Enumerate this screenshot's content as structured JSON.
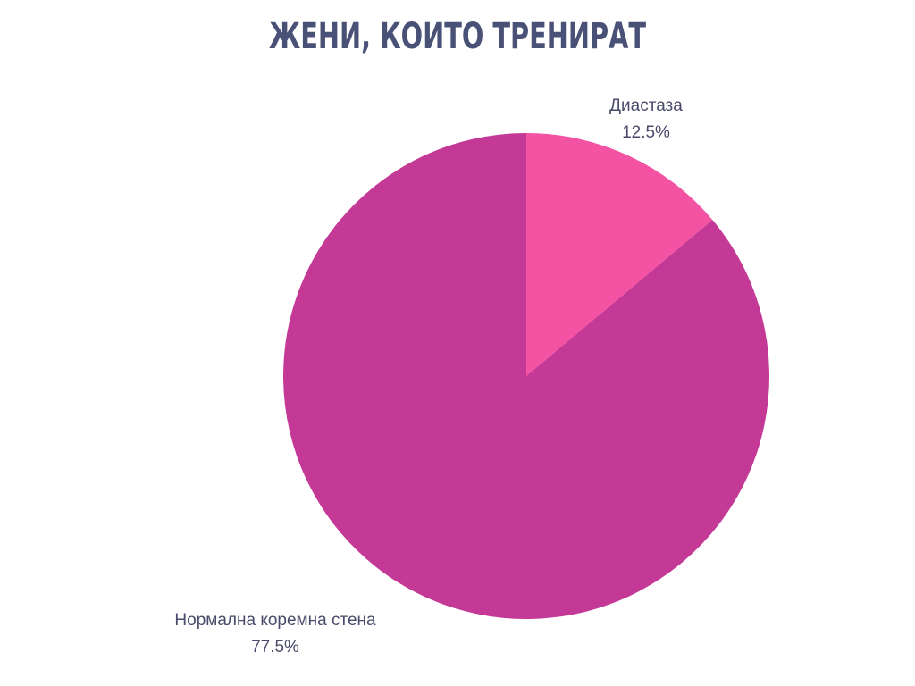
{
  "chart_data": {
    "type": "pie",
    "title": "ЖЕНИ, КОИТО ТРЕНИРАТ",
    "slices": [
      {
        "label": "Диастаза",
        "value": 12.5,
        "value_label": "12.5%",
        "color": "#f452a2"
      },
      {
        "label": "Нормална коремна стена",
        "value": 77.5,
        "value_label": "77.5%",
        "color": "#c43896"
      }
    ],
    "legend": "none"
  }
}
